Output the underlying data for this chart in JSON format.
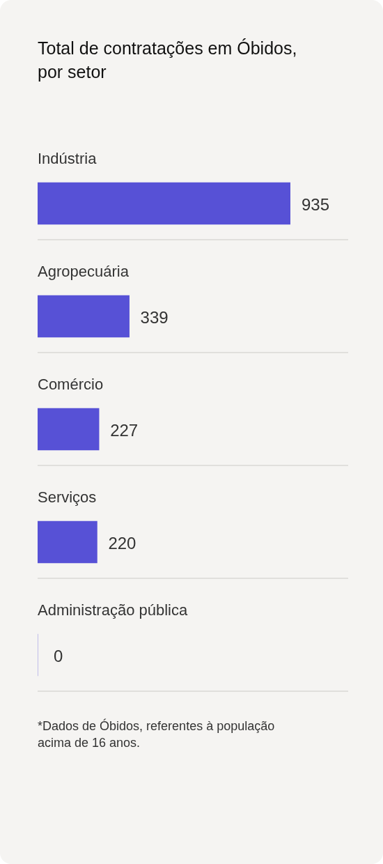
{
  "chart_data": {
    "type": "bar",
    "orientation": "horizontal",
    "title": "Total de contratações em Óbidos, por setor",
    "categories": [
      "Indústria",
      "Agropecuária",
      "Comércio",
      "Serviços",
      "Administração pública"
    ],
    "values": [
      935,
      339,
      227,
      220,
      0
    ],
    "color": "#5751d6",
    "data_labels": true,
    "grid": "y",
    "tick_labels": "y",
    "annotations": [
      "*Dados de Óbidos, referentes à população acima de 16 anos."
    ]
  }
}
